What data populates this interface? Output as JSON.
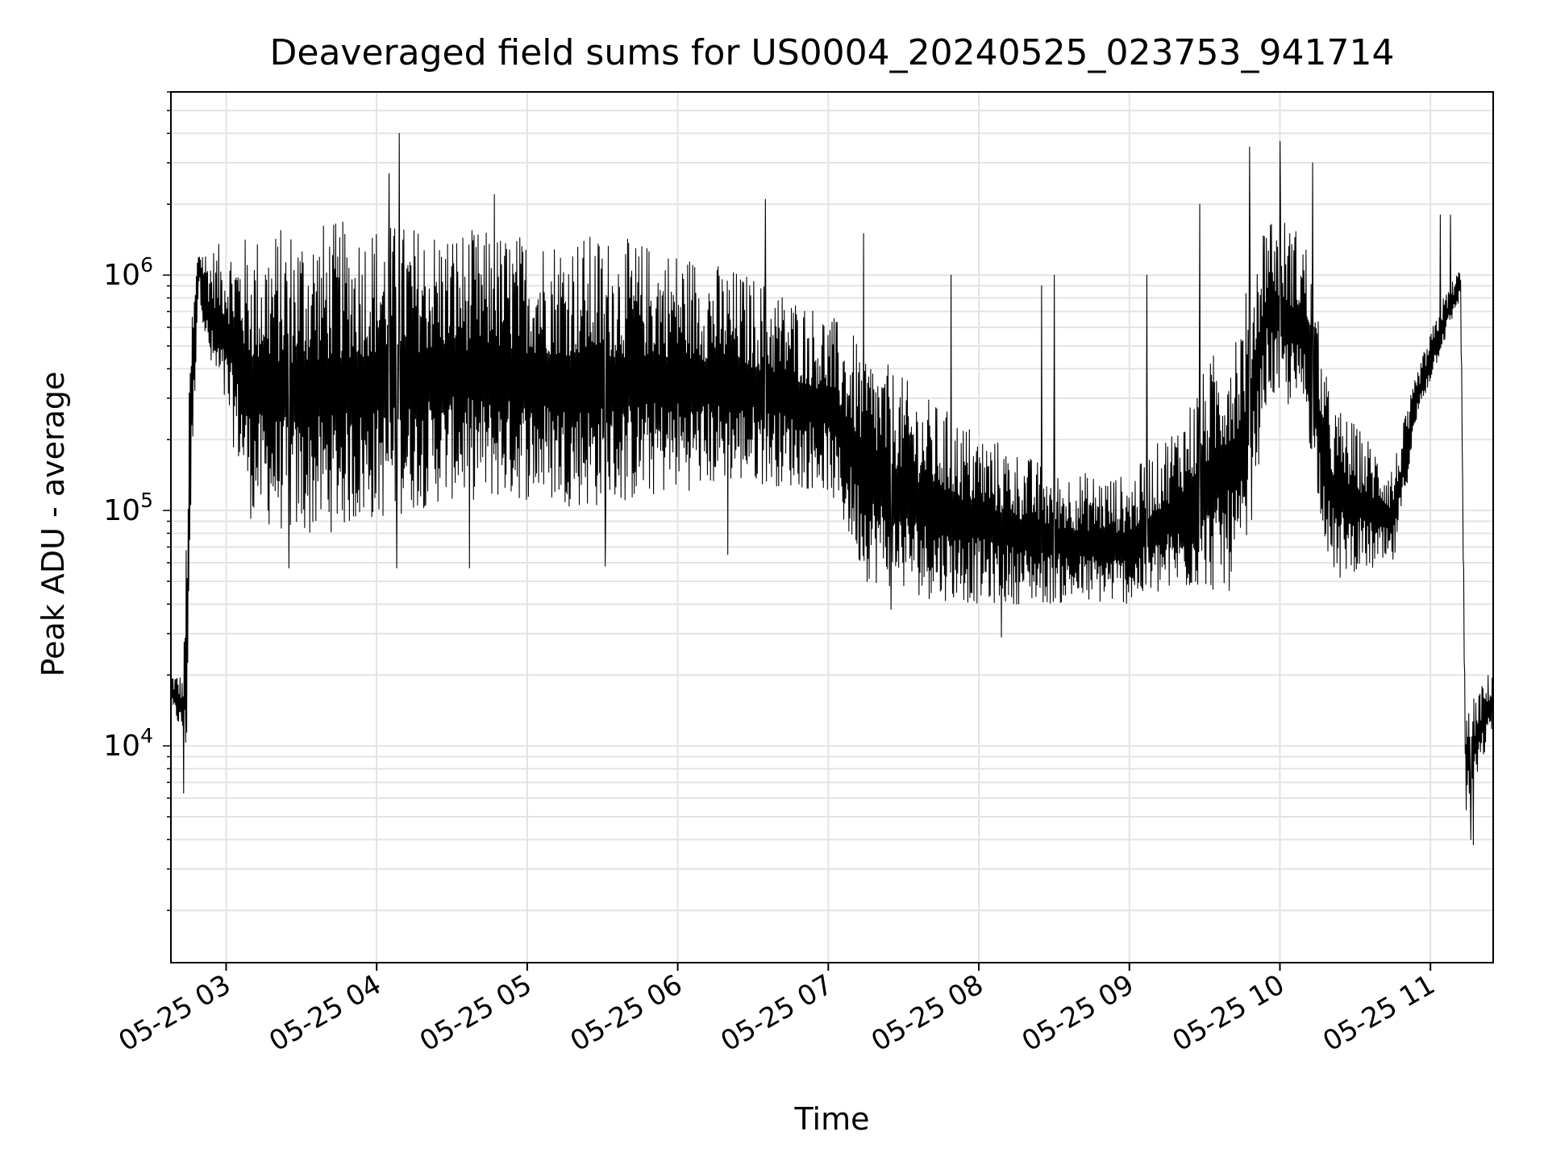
{
  "chart_data": {
    "type": "line",
    "title": "Deaveraged field sums for US0004_20240525_023753_941714",
    "xlabel": "Time",
    "ylabel": "Peak ADU - average",
    "yscale": "log",
    "xlim": [
      "2024-05-25 02:38",
      "2024-05-25 11:25"
    ],
    "ylim": [
      1200,
      6000000
    ],
    "grid": true,
    "line_color": "#000000",
    "grid_color": "#e3e3e3",
    "x_tick_labels": [
      "05-25 03",
      "05-25 04",
      "05-25 05",
      "05-25 06",
      "05-25 07",
      "05-25 08",
      "05-25 09",
      "05-25 10",
      "05-25 11"
    ],
    "x_ticks": [
      "2024-05-25 03:00",
      "2024-05-25 04:00",
      "2024-05-25 05:00",
      "2024-05-25 06:00",
      "2024-05-25 07:00",
      "2024-05-25 08:00",
      "2024-05-25 09:00",
      "2024-05-25 10:00",
      "2024-05-25 11:00"
    ],
    "y_ticks": [
      {
        "value": 10000,
        "base": "10",
        "exp": "4"
      },
      {
        "value": 100000,
        "base": "10",
        "exp": "5"
      },
      {
        "value": 1000000,
        "base": "10",
        "exp": "6"
      }
    ],
    "series": [
      {
        "envelope": [
          {
            "x": "2024-05-25 02:38",
            "low": 14000,
            "high": 21000
          },
          {
            "x": "2024-05-25 02:43",
            "low": 11000,
            "high": 20000
          },
          {
            "x": "2024-05-25 02:44",
            "low": 6500,
            "high": 80000
          },
          {
            "x": "2024-05-25 02:46",
            "low": 100000,
            "high": 700000
          },
          {
            "x": "2024-05-25 02:49",
            "low": 900000,
            "high": 1400000
          },
          {
            "x": "2024-05-25 02:53",
            "low": 400000,
            "high": 1300000
          },
          {
            "x": "2024-05-25 03:00",
            "low": 250000,
            "high": 1400000
          },
          {
            "x": "2024-05-25 03:10",
            "low": 90000,
            "high": 1500000
          },
          {
            "x": "2024-05-25 03:30",
            "low": 75000,
            "high": 1700000
          },
          {
            "x": "2024-05-25 04:00",
            "low": 90000,
            "high": 1700000
          },
          {
            "x": "2024-05-25 04:30",
            "low": 110000,
            "high": 1600000
          },
          {
            "x": "2024-05-25 05:00",
            "low": 110000,
            "high": 1500000
          },
          {
            "x": "2024-05-25 05:30",
            "low": 100000,
            "high": 1500000
          },
          {
            "x": "2024-05-25 06:00",
            "low": 120000,
            "high": 1300000
          },
          {
            "x": "2024-05-25 06:30",
            "low": 130000,
            "high": 1000000
          },
          {
            "x": "2024-05-25 07:00",
            "low": 120000,
            "high": 700000
          },
          {
            "x": "2024-05-25 07:15",
            "low": 50000,
            "high": 500000
          },
          {
            "x": "2024-05-25 07:40",
            "low": 42000,
            "high": 300000
          },
          {
            "x": "2024-05-25 08:00",
            "low": 40000,
            "high": 220000
          },
          {
            "x": "2024-05-25 08:30",
            "low": 40000,
            "high": 150000
          },
          {
            "x": "2024-05-25 09:00",
            "low": 40000,
            "high": 140000
          },
          {
            "x": "2024-05-25 09:20",
            "low": 45000,
            "high": 250000
          },
          {
            "x": "2024-05-25 09:45",
            "low": 45000,
            "high": 800000
          },
          {
            "x": "2024-05-25 09:55",
            "low": 300000,
            "high": 2000000
          },
          {
            "x": "2024-05-25 10:10",
            "low": 250000,
            "high": 1500000
          },
          {
            "x": "2024-05-25 10:20",
            "low": 55000,
            "high": 300000
          },
          {
            "x": "2024-05-25 10:45",
            "low": 55000,
            "high": 160000
          },
          {
            "x": "2024-05-25 10:55",
            "low": 250000,
            "high": 400000
          },
          {
            "x": "2024-05-25 11:05",
            "low": 500000,
            "high": 800000
          },
          {
            "x": "2024-05-25 11:12",
            "low": 800000,
            "high": 1100000
          },
          {
            "x": "2024-05-25 11:14",
            "low": 5000,
            "high": 14000
          },
          {
            "x": "2024-05-25 11:25",
            "low": 12000,
            "high": 22000
          }
        ],
        "spikes": [
          {
            "x": "2024-05-25 04:09",
            "y": 4000000
          },
          {
            "x": "2024-05-25 04:05",
            "y": 2700000
          },
          {
            "x": "2024-05-25 04:47",
            "y": 2200000
          },
          {
            "x": "2024-05-25 06:35",
            "y": 2100000
          },
          {
            "x": "2024-05-25 07:14",
            "y": 1500000
          },
          {
            "x": "2024-05-25 07:49",
            "y": 1000000
          },
          {
            "x": "2024-05-25 08:25",
            "y": 900000
          },
          {
            "x": "2024-05-25 08:30",
            "y": 1000000
          },
          {
            "x": "2024-05-25 09:07",
            "y": 1000000
          },
          {
            "x": "2024-05-25 09:28",
            "y": 2000000
          },
          {
            "x": "2024-05-25 09:48",
            "y": 3500000
          },
          {
            "x": "2024-05-25 10:00",
            "y": 3700000
          },
          {
            "x": "2024-05-25 10:13",
            "y": 3000000
          },
          {
            "x": "2024-05-25 11:04",
            "y": 1800000
          },
          {
            "x": "2024-05-25 11:08",
            "y": 1800000
          }
        ],
        "dips": [
          {
            "x": "2024-05-25 02:43",
            "y": 6300
          },
          {
            "x": "2024-05-25 03:25",
            "y": 57000
          },
          {
            "x": "2024-05-25 04:08",
            "y": 57000
          },
          {
            "x": "2024-05-25 04:37",
            "y": 57000
          },
          {
            "x": "2024-05-25 05:31",
            "y": 58000
          },
          {
            "x": "2024-05-25 06:20",
            "y": 65000
          },
          {
            "x": "2024-05-25 07:25",
            "y": 38000
          },
          {
            "x": "2024-05-25 08:09",
            "y": 29000
          },
          {
            "x": "2024-05-25 10:24",
            "y": 52000
          },
          {
            "x": "2024-05-25 11:16",
            "y": 4000
          },
          {
            "x": "2024-05-25 11:17",
            "y": 3800
          }
        ]
      }
    ]
  }
}
